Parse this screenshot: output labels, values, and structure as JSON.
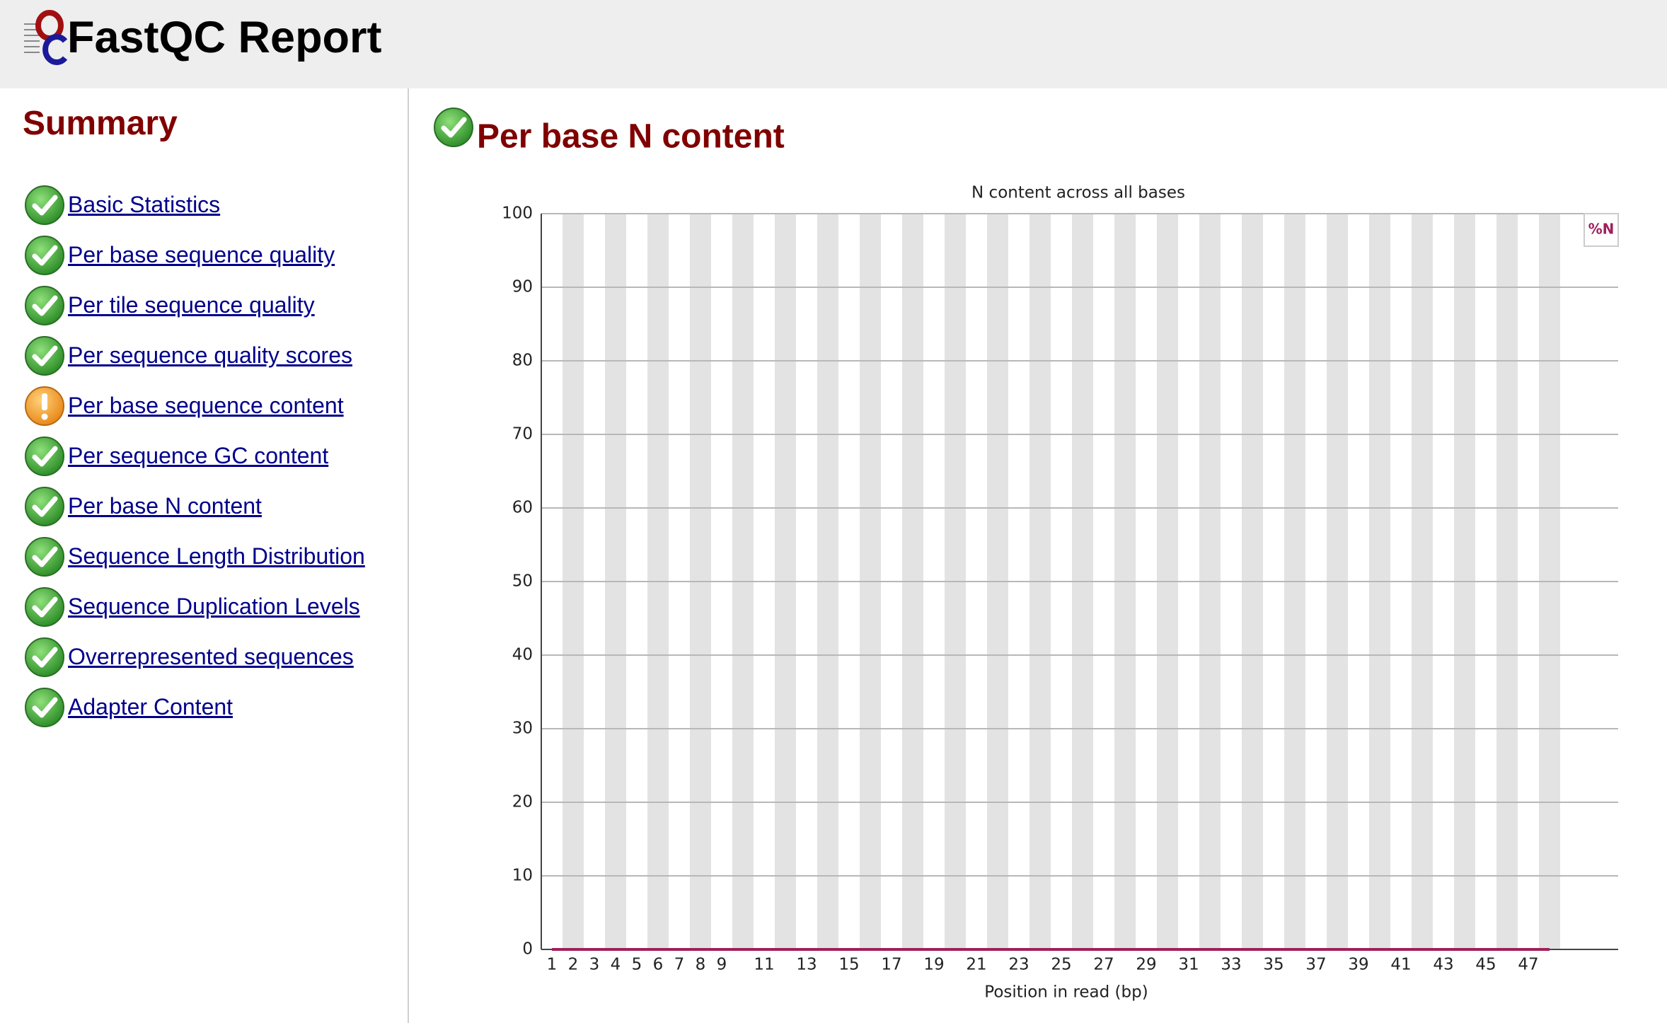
{
  "header": {
    "title": "FastQC Report"
  },
  "summary": {
    "title": "Summary",
    "items": [
      "Basic Statistics",
      "Per base sequence quality",
      "Per tile sequence quality",
      "Per sequence quality scores",
      "Per base sequence content",
      "Per sequence GC content",
      "Per base N content",
      "Sequence Length Distribution",
      "Sequence Duplication Levels",
      "Overrepresented sequences",
      "Adapter Content"
    ]
  },
  "section": {
    "title": "Per base N content"
  },
  "chart_data": {
    "type": "line",
    "title": "N content across all bases",
    "x_label": "Position in read (bp)",
    "categories": [
      "1",
      "2",
      "3",
      "4",
      "5",
      "6",
      "7",
      "8",
      "9",
      null,
      "11",
      null,
      "13",
      null,
      "15",
      null,
      "17",
      null,
      "19",
      null,
      "21",
      null,
      "23",
      null,
      "25",
      null,
      "27",
      null,
      "29",
      null,
      "31",
      null,
      "33",
      null,
      "35",
      null,
      "37",
      null,
      "39",
      null,
      "41",
      null,
      "43",
      null,
      "45",
      null,
      "47",
      null
    ],
    "series": [
      {
        "name": "%N",
        "color": "#a0205a",
        "values": [
          0,
          0,
          0,
          0,
          0,
          0,
          0,
          0,
          0,
          0,
          0,
          0,
          0,
          0,
          0,
          0,
          0,
          0,
          0,
          0,
          0,
          0,
          0,
          0,
          0,
          0,
          0,
          0,
          0,
          0,
          0,
          0,
          0,
          0,
          0,
          0,
          0,
          0,
          0,
          0,
          0,
          0,
          0,
          0,
          0,
          0,
          0,
          0
        ]
      }
    ],
    "ylim": [
      0,
      100
    ],
    "yticks": [
      0,
      10,
      20,
      30,
      40,
      50,
      60,
      70,
      80,
      90,
      100
    ],
    "grid": true,
    "legend": "top-right"
  }
}
